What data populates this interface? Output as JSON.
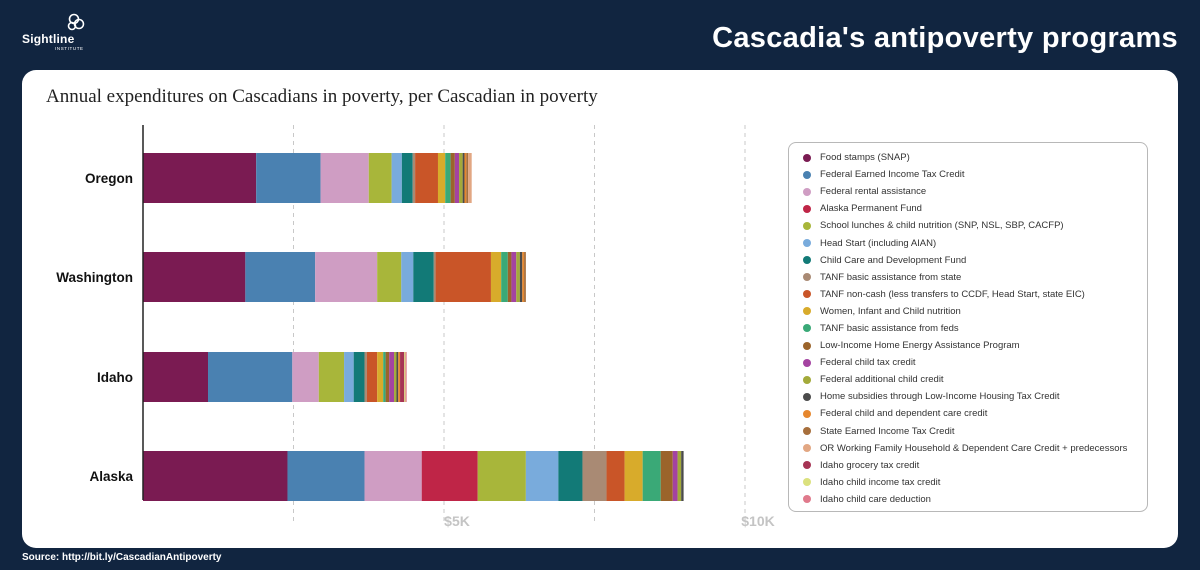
{
  "header": {
    "logo_text": "Sightline",
    "logo_sub": "INSTITUTE",
    "title": "Cascadia's antipoverty programs"
  },
  "card": {
    "subtitle": "Annual expenditures on Cascadians in poverty, per Cascadian in poverty"
  },
  "footer": {
    "source": "Source: http://bit.ly/CascadianAntipoverty"
  },
  "chart_data": {
    "type": "bar",
    "orientation": "horizontal",
    "stacked": true,
    "title": "Annual expenditures on Cascadians in poverty, per Cascadian in poverty",
    "xlabel": "",
    "ylabel": "",
    "xlim": [
      0,
      10000
    ],
    "x_ticks": [
      2500,
      5000,
      7500,
      10000
    ],
    "x_tick_labels": [
      "",
      "$5K",
      "",
      "$10K"
    ],
    "grid": "vertical dashed",
    "legend_position": "right",
    "categories": [
      "Oregon",
      "Washington",
      "Idaho",
      "Alaska"
    ],
    "series": [
      {
        "name": "Food stamps (SNAP)",
        "color": "#7a1b52",
        "values": [
          1880,
          1700,
          1080,
          2400
        ]
      },
      {
        "name": "Federal Earned Income Tax Credit",
        "color": "#4a81b1",
        "values": [
          1070,
          1160,
          1400,
          1280
        ]
      },
      {
        "name": "Federal rental assistance",
        "color": "#cf9dc3",
        "values": [
          800,
          1030,
          440,
          950
        ]
      },
      {
        "name": "Alaska Permanent Fund",
        "color": "#bf2547",
        "values": [
          0,
          0,
          0,
          930
        ]
      },
      {
        "name": "School lunches & child nutrition (SNP, NSL, SBP, CACFP)",
        "color": "#a8b63a",
        "values": [
          380,
          400,
          420,
          800
        ]
      },
      {
        "name": "Head Start (including AIAN)",
        "color": "#79abdc",
        "values": [
          170,
          200,
          160,
          540
        ]
      },
      {
        "name": "Child Care and Development Fund",
        "color": "#127a77",
        "values": [
          180,
          340,
          180,
          400
        ]
      },
      {
        "name": "TANF basic assistance from state",
        "color": "#a98a74",
        "values": [
          40,
          30,
          40,
          400
        ]
      },
      {
        "name": "TANF non-cash (less transfers to CCDF, Head Start, state EIC)",
        "color": "#c95528",
        "values": [
          380,
          920,
          170,
          300
        ]
      },
      {
        "name": "Women, Infant and Child nutrition",
        "color": "#d8ab2b",
        "values": [
          120,
          170,
          100,
          300
        ]
      },
      {
        "name": "TANF basic assistance from feds",
        "color": "#3aa977",
        "values": [
          90,
          110,
          40,
          300
        ]
      },
      {
        "name": "Low-Income Home Energy Assistance Program",
        "color": "#9b642b",
        "values": [
          70,
          60,
          60,
          200
        ]
      },
      {
        "name": "Federal child tax credit",
        "color": "#a443a1",
        "values": [
          70,
          80,
          80,
          80
        ]
      },
      {
        "name": "Federal additional child credit",
        "color": "#a3aa3a",
        "values": [
          60,
          60,
          40,
          60
        ]
      },
      {
        "name": "Home subsidies through Low-Income Housing Tax Credit",
        "color": "#4b4b4b",
        "values": [
          30,
          40,
          30,
          40
        ]
      },
      {
        "name": "Federal child and dependent care credit",
        "color": "#e6872e",
        "values": [
          30,
          30,
          30,
          0
        ]
      },
      {
        "name": "State Earned Income Tax Credit",
        "color": "#a76f3c",
        "values": [
          30,
          30,
          0,
          0
        ]
      },
      {
        "name": "OR Working Family Household & Dependent Care Credit + predecessors",
        "color": "#e2a783",
        "values": [
          60,
          0,
          0,
          0
        ]
      },
      {
        "name": "Idaho grocery tax credit",
        "color": "#a63454",
        "values": [
          0,
          0,
          70,
          0
        ]
      },
      {
        "name": "Idaho child income tax credit",
        "color": "#dbe17e",
        "values": [
          0,
          0,
          20,
          0
        ]
      },
      {
        "name": "Idaho child care deduction",
        "color": "#e07a8c",
        "values": [
          0,
          0,
          20,
          0
        ]
      }
    ]
  }
}
